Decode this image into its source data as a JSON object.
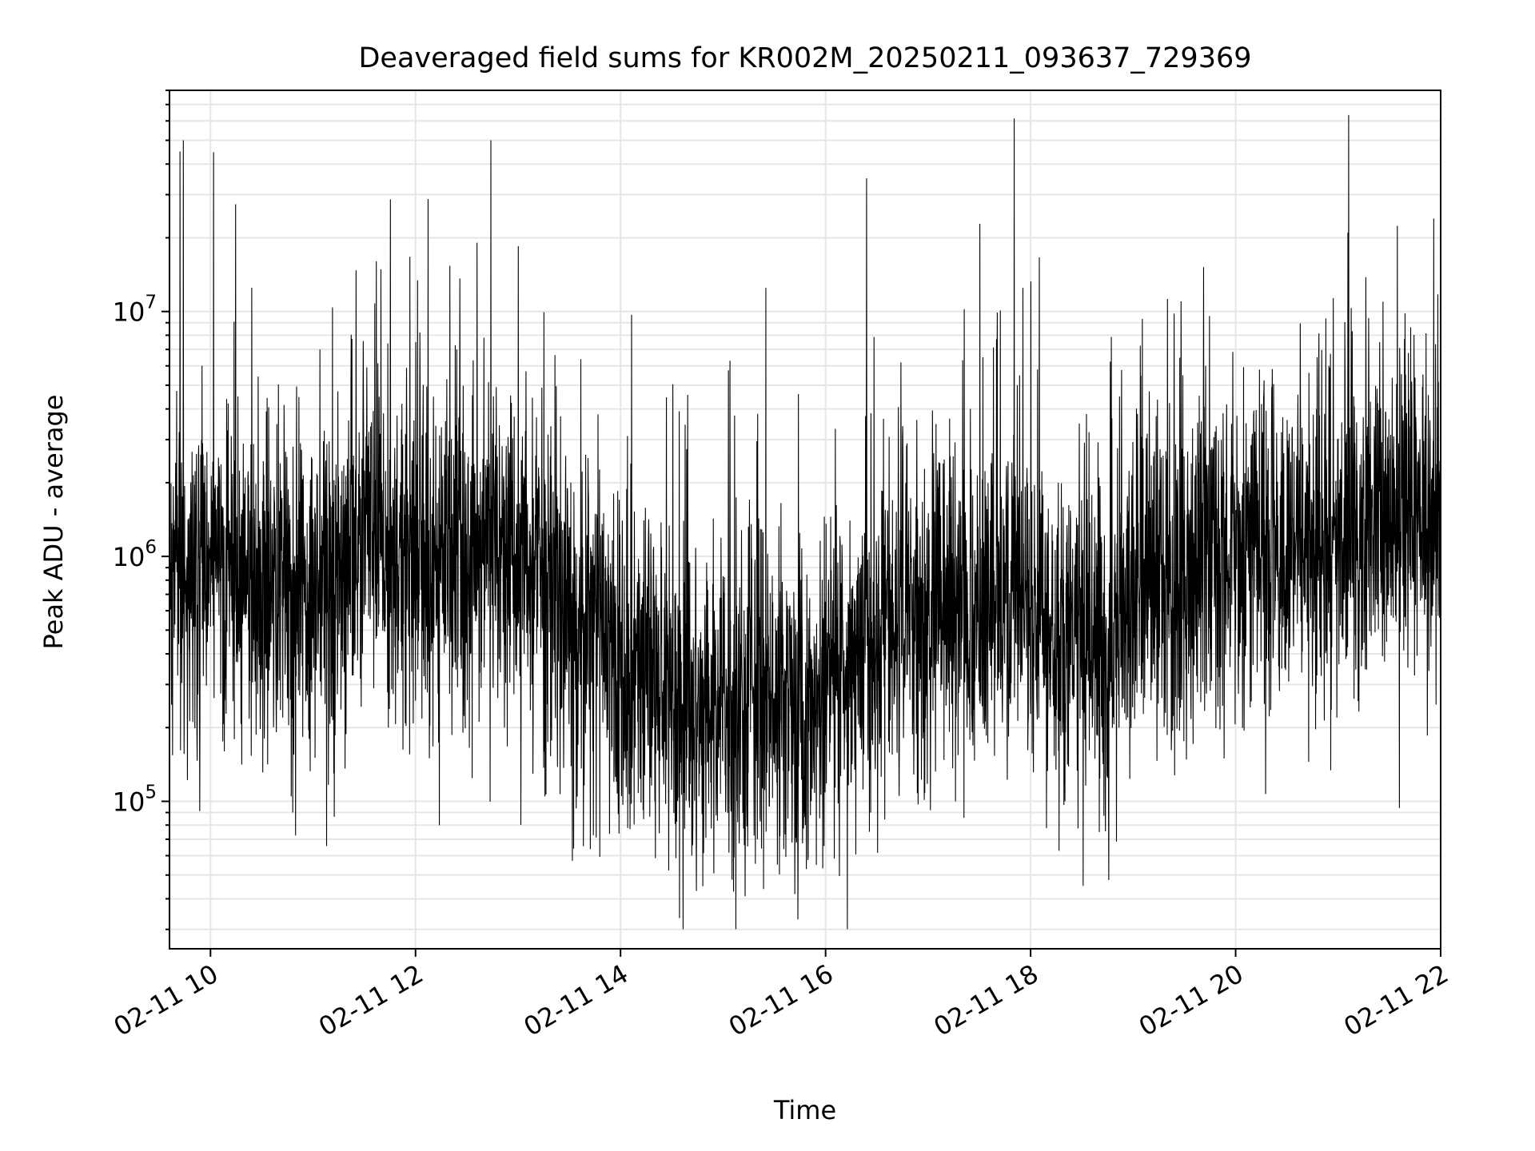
{
  "chart_data": {
    "type": "line",
    "title": "Deaveraged field sums for KR002M_20250211_093637_729369",
    "xlabel": "Time",
    "ylabel": "Peak ADU - average",
    "x_scale": "time",
    "y_scale": "log",
    "xlim": [
      "2025-02-11 09:36",
      "2025-02-11 22:00"
    ],
    "ylim": [
      25000,
      80000000
    ],
    "grid": true,
    "legend": "none",
    "x_ticks": [
      {
        "value": "2025-02-11 10:00",
        "label": "02-11 10"
      },
      {
        "value": "2025-02-11 12:00",
        "label": "02-11 12"
      },
      {
        "value": "2025-02-11 14:00",
        "label": "02-11 14"
      },
      {
        "value": "2025-02-11 16:00",
        "label": "02-11 16"
      },
      {
        "value": "2025-02-11 18:00",
        "label": "02-11 18"
      },
      {
        "value": "2025-02-11 20:00",
        "label": "02-11 20"
      },
      {
        "value": "2025-02-11 22:00",
        "label": "02-11 22"
      }
    ],
    "y_ticks": [
      {
        "value": 100000,
        "base": "10",
        "exp": "5"
      },
      {
        "value": 1000000,
        "base": "10",
        "exp": "6"
      },
      {
        "value": 10000000,
        "base": "10",
        "exp": "7"
      }
    ],
    "colors": {
      "line": "#000000",
      "grid": "#e6e6e6",
      "axes": "#000000"
    },
    "series": [
      {
        "x": [
          "2025-02-11 09:36",
          "2025-02-11 09:40",
          "2025-02-11 09:42",
          "2025-02-11 09:44",
          "2025-02-11 09:46",
          "2025-02-11 09:48",
          "2025-02-11 09:52",
          "2025-02-11 09:56",
          "2025-02-11 10:00",
          "2025-02-11 10:08",
          "2025-02-11 10:16",
          "2025-02-11 10:24",
          "2025-02-11 10:32",
          "2025-02-11 10:40",
          "2025-02-11 10:48",
          "2025-02-11 10:56",
          "2025-02-11 11:04",
          "2025-02-11 11:12",
          "2025-02-11 11:20",
          "2025-02-11 11:28",
          "2025-02-11 11:36",
          "2025-02-11 11:44",
          "2025-02-11 11:52",
          "2025-02-11 12:00",
          "2025-02-11 12:08",
          "2025-02-11 12:16",
          "2025-02-11 12:24",
          "2025-02-11 12:32",
          "2025-02-11 12:38",
          "2025-02-11 12:44",
          "2025-02-11 12:52",
          "2025-02-11 13:00",
          "2025-02-11 13:08",
          "2025-02-11 13:16",
          "2025-02-11 13:24",
          "2025-02-11 13:32",
          "2025-02-11 13:40",
          "2025-02-11 13:48",
          "2025-02-11 13:56",
          "2025-02-11 14:04",
          "2025-02-11 14:12",
          "2025-02-11 14:20",
          "2025-02-11 14:28",
          "2025-02-11 14:36",
          "2025-02-11 14:44",
          "2025-02-11 14:48",
          "2025-02-11 14:56",
          "2025-02-11 15:04",
          "2025-02-11 15:12",
          "2025-02-11 15:20",
          "2025-02-11 15:28",
          "2025-02-11 15:36",
          "2025-02-11 15:44",
          "2025-02-11 15:48",
          "2025-02-11 15:56",
          "2025-02-11 16:04",
          "2025-02-11 16:12",
          "2025-02-11 16:20",
          "2025-02-11 16:28",
          "2025-02-11 16:36",
          "2025-02-11 16:44",
          "2025-02-11 16:52",
          "2025-02-11 17:00",
          "2025-02-11 17:08",
          "2025-02-11 17:16",
          "2025-02-11 17:24",
          "2025-02-11 17:32",
          "2025-02-11 17:40",
          "2025-02-11 17:48",
          "2025-02-11 17:56",
          "2025-02-11 18:04",
          "2025-02-11 18:12",
          "2025-02-11 18:20",
          "2025-02-11 18:28",
          "2025-02-11 18:36",
          "2025-02-11 18:44",
          "2025-02-11 18:52",
          "2025-02-11 19:00",
          "2025-02-11 19:08",
          "2025-02-11 19:16",
          "2025-02-11 19:24",
          "2025-02-11 19:28",
          "2025-02-11 19:36",
          "2025-02-11 19:44",
          "2025-02-11 19:52",
          "2025-02-11 20:00",
          "2025-02-11 20:08",
          "2025-02-11 20:16",
          "2025-02-11 20:24",
          "2025-02-11 20:32",
          "2025-02-11 20:40",
          "2025-02-11 20:48",
          "2025-02-11 20:56",
          "2025-02-11 21:04",
          "2025-02-11 21:12",
          "2025-02-11 21:20",
          "2025-02-11 21:28",
          "2025-02-11 21:36",
          "2025-02-11 21:44",
          "2025-02-11 21:52",
          "2025-02-11 22:00"
        ],
        "y": [
          700000,
          1200000,
          45000000,
          50000000,
          900000,
          1500000,
          190000,
          2000000,
          900000,
          160000,
          4500000,
          12500000,
          400000,
          1500000,
          90000,
          600000,
          7000000,
          130000,
          2500000,
          700000,
          10800000,
          200000,
          4200000,
          7500000,
          150000,
          600000,
          7000000,
          400000,
          900000,
          50000000,
          200000,
          18500000,
          300000,
          650000,
          1500000,
          800000,
          250000,
          600000,
          120000,
          3100000,
          500000,
          100000,
          150000,
          250000,
          800000,
          45000,
          120000,
          6300000,
          200000,
          70000,
          150000,
          300000,
          4600000,
          80000,
          200000,
          300000,
          250000,
          200000,
          500000,
          800000,
          6200000,
          400000,
          1500000,
          300000,
          100000,
          250000,
          6500000,
          7700000,
          250000,
          450000,
          5800000,
          450000,
          100000,
          600000,
          200000,
          450000,
          4500000,
          300000,
          500000,
          1500000,
          9800000,
          11000000,
          700000,
          400000,
          1200000,
          500000,
          2000000,
          800000,
          3200000,
          1500000,
          700000,
          1200000,
          600000,
          5600000,
          800000,
          1800000,
          900000,
          7100000,
          1100000,
          1300000,
          1500000
        ]
      }
    ],
    "noise": {
      "seed": 729369,
      "segment_minutes": 0.15
    }
  }
}
